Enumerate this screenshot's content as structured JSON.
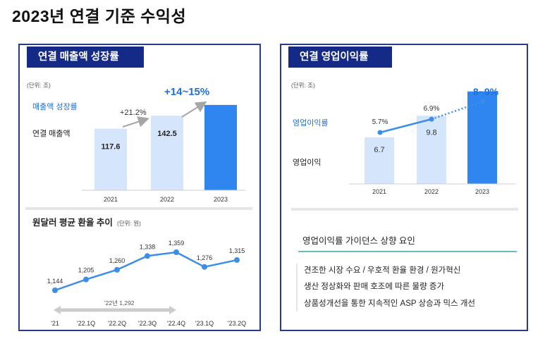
{
  "page_title": "2023년 연결 기준 수익성",
  "left_panel": {
    "header": "연결 매출액 성장률",
    "unit": "(단위: 조)",
    "growth_legend": "매출액 성장률",
    "bar_legend": "연결 매출액",
    "growth_2022": "+21.2%",
    "growth_2023": "+14~15%"
  },
  "fx_section": {
    "title": "원달러 평균 환율 추이",
    "unit": "(단위: 원)",
    "range_label": "'22년 1,292"
  },
  "right_panel": {
    "header": "연결 영업이익률",
    "unit": "(단위: 조)",
    "margin_legend": "영업이익률",
    "profit_legend": "영업이익",
    "target_2023": "8~9%",
    "guidance_title": "영업이익률 가이던스 상향 요인",
    "guidance_items": [
      "견조한 시장 수요 / 우호적 환율 환경 / 원가혁신",
      "생산 정상화와 판매 호조에 따른 물량 증가",
      "상품성개선을 통한 지속적인 ASP 상승과 믹스 개선"
    ]
  },
  "colors": {
    "navy": "#142a86",
    "light_bar": "#d5e5fb",
    "accent_bar": "#2f86f0",
    "line_blue": "#3c8ee8",
    "arrow_gray": "#a6a6a6",
    "highlight_text": "#1f6fd6"
  },
  "chart_data": [
    {
      "type": "bar",
      "title": "연결 매출액 성장률",
      "categories": [
        "2021",
        "2022",
        "2023"
      ],
      "series": [
        {
          "name": "연결 매출액",
          "values": [
            117.6,
            142.5,
            null
          ]
        }
      ],
      "value_labels": [
        "117.6",
        "142.5",
        ""
      ],
      "bar_2023_visual_estimate": 163,
      "growth_labels": {
        "2022": "+21.2%",
        "2023": "+14~15%"
      },
      "unit": "(단위: 조)",
      "ylim": [
        0,
        175
      ]
    },
    {
      "type": "line",
      "title": "원달러 평균 환율 추이",
      "categories": [
        "'21",
        "'22.1Q",
        "'22.2Q",
        "'22.3Q",
        "'22.4Q",
        "'23.1Q",
        "'23.2Q"
      ],
      "values": [
        1144,
        1205,
        1260,
        1338,
        1359,
        1276,
        1315
      ],
      "value_labels": [
        "1,144",
        "1,205",
        "1,260",
        "1,338",
        "1,359",
        "1,276",
        "1,315"
      ],
      "unit": "(단위: 원)",
      "ylim": [
        1100,
        1400
      ]
    },
    {
      "type": "bar",
      "title": "연결 영업이익률",
      "categories": [
        "2021",
        "2022",
        "2023"
      ],
      "series": [
        {
          "name": "영업이익",
          "values": [
            6.7,
            9.8,
            null
          ]
        }
      ],
      "value_labels": [
        "6.7",
        "9.8",
        ""
      ],
      "bar_2023_visual_estimate": 13.3,
      "ylim": [
        0,
        15
      ],
      "margin_line": {
        "name": "영업이익률",
        "values": [
          5.7,
          6.9,
          8.5
        ],
        "labels": [
          "5.7%",
          "6.9%",
          "8~9%"
        ],
        "ylim": [
          3.5,
          9.5
        ]
      },
      "unit": "(단위: 조)"
    }
  ]
}
